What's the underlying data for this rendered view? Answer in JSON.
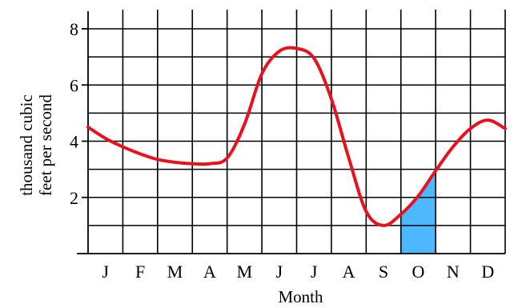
{
  "chart_data": {
    "type": "line",
    "title": "",
    "xlabel": "Month",
    "ylabel": [
      "thousand cubic",
      "feet per second"
    ],
    "categories": [
      "J",
      "F",
      "M",
      "A",
      "M",
      "J",
      "J",
      "A",
      "S",
      "O",
      "N",
      "D"
    ],
    "yticks": [
      2,
      4,
      6,
      8
    ],
    "ylim": [
      0,
      8
    ],
    "grid": true,
    "line_color": "#e8121f",
    "shade_color": "#4db8ff",
    "shaded_region": {
      "month": "O",
      "from_month_index": 9,
      "to_month_index": 10
    },
    "series": [
      {
        "x": [
          0,
          0.5,
          1,
          1.5,
          2,
          2.5,
          3,
          3.5,
          4,
          4.5,
          5,
          5.5,
          6,
          6.5,
          7,
          7.5,
          8,
          8.5,
          9,
          9.5,
          10,
          10.5,
          11,
          11.5,
          12
        ],
        "values": [
          4.5,
          4.1,
          3.8,
          3.55,
          3.35,
          3.25,
          3.2,
          3.2,
          3.4,
          4.6,
          6.4,
          7.2,
          7.3,
          6.95,
          5.5,
          3.4,
          1.5,
          1.0,
          1.4,
          2.05,
          2.95,
          3.8,
          4.45,
          4.75,
          4.45
        ]
      }
    ]
  }
}
